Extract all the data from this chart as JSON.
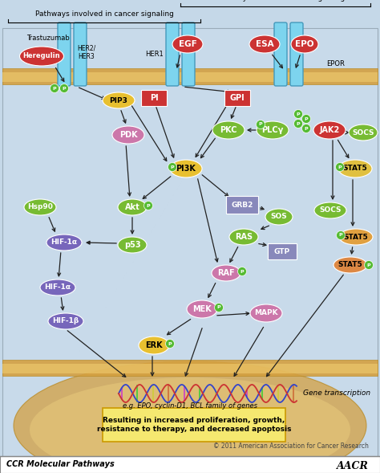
{
  "bg_color": "#c5d8e8",
  "title_epo": "Pathways involved in EPO signaling",
  "title_cancer": "Pathways involved in cancer signaling",
  "footer_left": "CCR Molecular Pathways",
  "footer_right": "© 2011 American Association for Cancer Research",
  "result_text": "Resulting in increased proliferation, growth,\nresistance to therapy, and decreased apoptosis",
  "transcription_text": "Gene transcription",
  "gene_example": "e.g. EPO, cyclin-D1, BCL family of genes"
}
